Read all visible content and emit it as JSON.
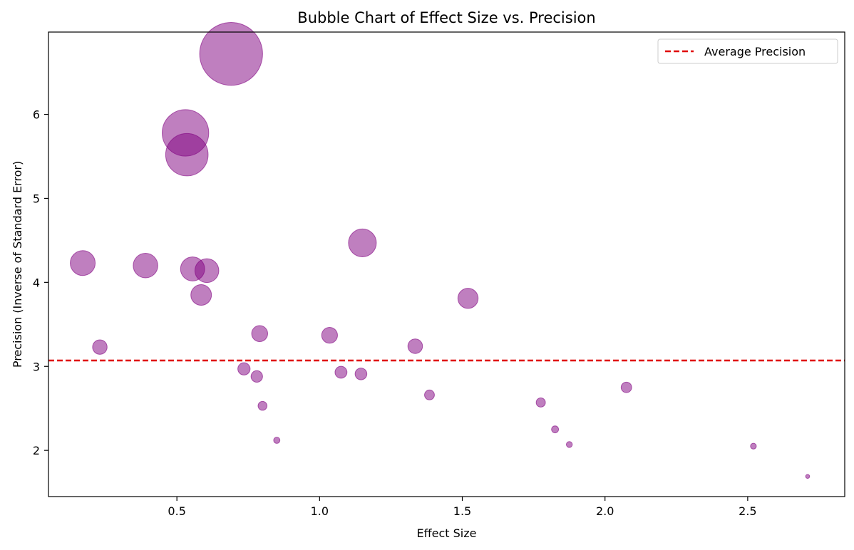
{
  "chart_data": {
    "type": "scatter",
    "title": "Bubble Chart of Effect Size vs. Precision",
    "xlabel": "Effect Size",
    "ylabel": "Precision (Inverse of Standard Error)",
    "xlim": [
      0.05,
      2.84
    ],
    "ylim": [
      1.45,
      6.98
    ],
    "x_ticks": [
      0.5,
      1.0,
      1.5,
      2.0,
      2.5
    ],
    "x_tick_labels": [
      "0.5",
      "1.0",
      "1.5",
      "2.0",
      "2.5"
    ],
    "y_ticks": [
      2,
      3,
      4,
      5,
      6
    ],
    "y_tick_labels": [
      "2",
      "3",
      "4",
      "5",
      "6"
    ],
    "grid": false,
    "bubble_color": "#800080",
    "bubble_opacity": 0.5,
    "average_line": {
      "label": "Average Precision",
      "value": 3.07,
      "color": "#e00000",
      "style": "dashed"
    },
    "legend": {
      "position": "top-right",
      "entries": [
        "Average Precision"
      ]
    },
    "points": [
      {
        "x": 0.69,
        "y": 6.72,
        "size": 6.72
      },
      {
        "x": 0.53,
        "y": 5.78,
        "size": 5.78
      },
      {
        "x": 0.535,
        "y": 5.52,
        "size": 5.52
      },
      {
        "x": 0.17,
        "y": 4.23,
        "size": 4.23
      },
      {
        "x": 0.39,
        "y": 4.2,
        "size": 4.2
      },
      {
        "x": 0.555,
        "y": 4.16,
        "size": 4.16
      },
      {
        "x": 0.605,
        "y": 4.14,
        "size": 4.14
      },
      {
        "x": 0.585,
        "y": 3.85,
        "size": 3.85
      },
      {
        "x": 1.15,
        "y": 4.47,
        "size": 4.47
      },
      {
        "x": 1.52,
        "y": 3.81,
        "size": 3.81
      },
      {
        "x": 0.23,
        "y": 3.23,
        "size": 3.23
      },
      {
        "x": 0.79,
        "y": 3.39,
        "size": 3.39
      },
      {
        "x": 1.035,
        "y": 3.37,
        "size": 3.37
      },
      {
        "x": 1.335,
        "y": 3.24,
        "size": 3.24
      },
      {
        "x": 0.735,
        "y": 2.97,
        "size": 2.97
      },
      {
        "x": 0.78,
        "y": 2.88,
        "size": 2.88
      },
      {
        "x": 1.075,
        "y": 2.93,
        "size": 2.93
      },
      {
        "x": 1.145,
        "y": 2.91,
        "size": 2.91
      },
      {
        "x": 2.075,
        "y": 2.75,
        "size": 2.75
      },
      {
        "x": 1.385,
        "y": 2.66,
        "size": 2.66
      },
      {
        "x": 1.775,
        "y": 2.57,
        "size": 2.57
      },
      {
        "x": 0.8,
        "y": 2.53,
        "size": 2.53
      },
      {
        "x": 1.825,
        "y": 2.25,
        "size": 2.25
      },
      {
        "x": 0.85,
        "y": 2.12,
        "size": 2.12
      },
      {
        "x": 1.875,
        "y": 2.07,
        "size": 2.07
      },
      {
        "x": 2.52,
        "y": 2.05,
        "size": 2.05
      },
      {
        "x": 2.71,
        "y": 1.69,
        "size": 1.69
      }
    ]
  }
}
